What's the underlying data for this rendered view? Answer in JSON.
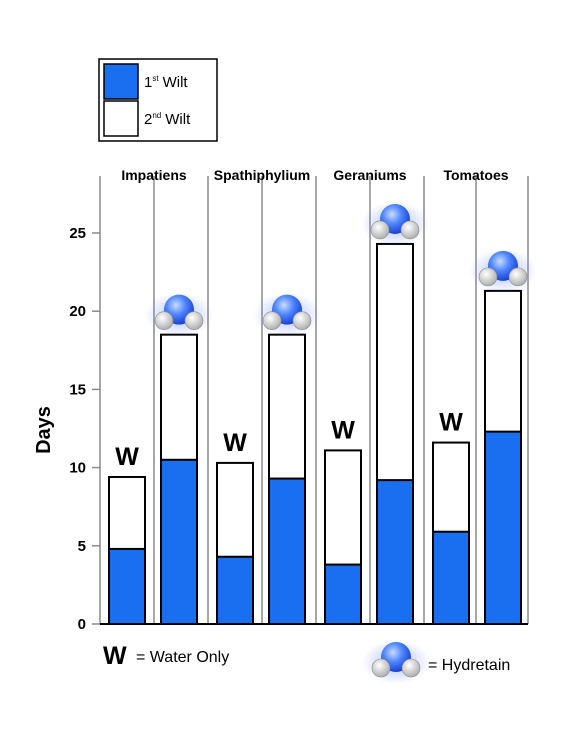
{
  "chart_data": {
    "type": "bar",
    "stacked": true,
    "categories": [
      "Impatiens",
      "Spathiphylium",
      "Geraniums",
      "Tomatoes"
    ],
    "ylabel": "Days",
    "ylim": [
      0,
      28
    ],
    "yticks": [
      0,
      5,
      10,
      15,
      20,
      25
    ],
    "grid": "vertical",
    "bar_groups": [
      "W",
      "Hydretain"
    ],
    "series": [
      {
        "name": "1st Wilt",
        "color": "#1a6ff0",
        "values": {
          "W": [
            4.8,
            4.3,
            3.8,
            5.9
          ],
          "Hydretain": [
            10.5,
            9.3,
            9.2,
            12.3
          ]
        }
      },
      {
        "name": "2nd Wilt",
        "color": "#ffffff",
        "values": {
          "W": [
            9.4,
            10.3,
            11.1,
            11.6
          ],
          "Hydretain": [
            18.5,
            18.5,
            24.3,
            21.3
          ]
        }
      }
    ],
    "legend": {
      "placement": "top-left",
      "items": [
        {
          "num": "1",
          "sup": "st",
          "text": "Wilt",
          "color": "#1a6ff0"
        },
        {
          "num": "2",
          "sup": "nd",
          "text": "Wilt",
          "color": "#ffffff"
        }
      ]
    },
    "markers": {
      "water": "W",
      "hydretain": "hydretain-droplet-icon"
    },
    "footer": {
      "water_symbol": "W",
      "water_text": "= Water Only",
      "hydretain_text": "= Hydretain"
    }
  }
}
